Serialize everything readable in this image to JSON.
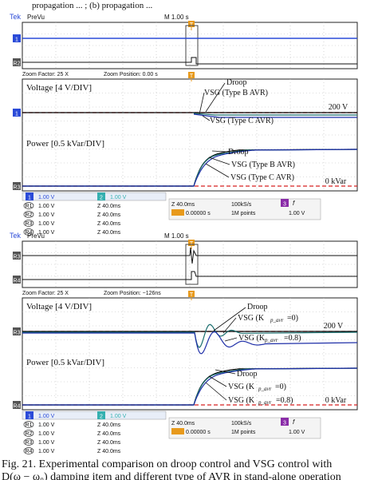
{
  "header_partial": "propagation ... ; (b) propagation ...",
  "panels": [
    {
      "brand": "Tek",
      "mode": "PreVu",
      "time_scale": "M 1.00 s",
      "trigger_marker": "T",
      "ch_markers": [
        "1",
        "R2"
      ],
      "zoom_factor": "Zoom Factor: 25 X",
      "zoom_position": "Zoom Position: 0.00 s",
      "ch_boxes": [
        {
          "id": "1",
          "value": "1.00 V"
        },
        {
          "id": "2",
          "value": "1.00 V"
        }
      ],
      "refs": [
        {
          "id": "R1",
          "value": "1.00 V",
          "zoom": "Z 40.0ms"
        },
        {
          "id": "R2",
          "value": "1.00 V",
          "zoom": "Z 40.0ms"
        },
        {
          "id": "R3",
          "value": "1.00 V",
          "zoom": "Z 40.0ms"
        },
        {
          "id": "R4",
          "value": "1.00 V",
          "zoom": "Z 40.0ms"
        }
      ],
      "time_readout": "Z 40.0ms",
      "sample_rate": "100kS/s",
      "trig_time": "0.00000 s",
      "points": "1M points",
      "ch3_label": "3",
      "trig_symbol": "f",
      "trig_level": "1.00 V",
      "left_markers_upper": "1",
      "left_markers_lower": "R3",
      "voltage_label": "Voltage [4 V/DIV]",
      "power_label": "Power [0.5 kVar/DIV]",
      "voltage_callouts": [
        "Droop",
        "VSG (Type B AVR)",
        "VSG (Type C AVR)"
      ],
      "power_callouts": [
        "Droop",
        "VSG (Type B AVR)",
        "VSG (Type C AVR)"
      ],
      "voltage_ref": "200 V",
      "power_ref": "0 kVar"
    },
    {
      "brand": "Tek",
      "mode": "PreVu",
      "time_scale": "M 1.00 s",
      "trigger_marker": "T",
      "ch_markers": [
        "R3",
        "R4"
      ],
      "zoom_factor": "Zoom Factor: 25 X",
      "zoom_position": "Zoom Position: −126ns",
      "ch_boxes": [
        {
          "id": "1",
          "value": "1.00 V"
        },
        {
          "id": "2",
          "value": "1.00 V"
        }
      ],
      "refs": [
        {
          "id": "R1",
          "value": "1.00 V",
          "zoom": "Z 40.0ms"
        },
        {
          "id": "R2",
          "value": "1.00 V",
          "zoom": "Z 40.0ms"
        },
        {
          "id": "R3",
          "value": "1.00 V",
          "zoom": "Z 40.0ms"
        },
        {
          "id": "R4",
          "value": "1.00 V",
          "zoom": "Z 40.0ms"
        }
      ],
      "time_readout": "Z 40.0ms",
      "sample_rate": "100kS/s",
      "trig_time": "0.00000 s",
      "points": "1M points",
      "ch3_label": "3",
      "trig_symbol": "f",
      "trig_level": "1.00 V",
      "left_markers_upper": "R3",
      "left_markers_lower": "R4",
      "voltage_label": "Voltage [4 V/DIV]",
      "power_label": "Power [0.5 kVar/DIV]",
      "voltage_callouts": [
        "Droop",
        "VSG (K",
        "p_avr",
        "=0)",
        "VSG (K",
        "p_avr",
        "=0.8)"
      ],
      "power_callouts": [
        "Droop",
        "VSG (K",
        "p_avr",
        "=0)",
        "VSG (K",
        "p_avr",
        "=0.8)"
      ],
      "voltage_ref": "200 V",
      "power_ref": "0 kVar"
    }
  ],
  "caption": {
    "line1": "Fig. 21.  Experimental comparison on droop control and VSG control with",
    "line2": "D(ω − ω₀) damping item and different type of AVR in stand-alone operation"
  },
  "chart_data": [
    {
      "type": "line",
      "title": "",
      "subplot": "Voltage [4 V/DIV]",
      "xlabel": "",
      "ylabel": "",
      "reference_label": "200 V",
      "series": [
        {
          "name": "Droop",
          "color": "#000000"
        },
        {
          "name": "VSG (Type B AVR)",
          "color": "#1a6e6e"
        },
        {
          "name": "VSG (Type C AVR)",
          "color": "#1f2fa8"
        }
      ]
    },
    {
      "type": "line",
      "title": "",
      "subplot": "Power [0.5 kVar/DIV]",
      "reference_label": "0 kVar",
      "series": [
        {
          "name": "Droop",
          "color": "#000000"
        },
        {
          "name": "VSG (Type B AVR)",
          "color": "#1a6e6e"
        },
        {
          "name": "VSG (Type C AVR)",
          "color": "#1f2fa8"
        }
      ]
    },
    {
      "type": "line",
      "title": "",
      "subplot": "Voltage [4 V/DIV]",
      "reference_label": "200 V",
      "series": [
        {
          "name": "Droop",
          "color": "#000000"
        },
        {
          "name": "VSG (Kp_avr=0)",
          "color": "#1a6e6e"
        },
        {
          "name": "VSG (Kp_avr=0.8)",
          "color": "#1f2fa8"
        }
      ]
    },
    {
      "type": "line",
      "title": "",
      "subplot": "Power [0.5 kVar/DIV]",
      "reference_label": "0 kVar",
      "series": [
        {
          "name": "Droop",
          "color": "#000000"
        },
        {
          "name": "VSG (Kp_avr=0)",
          "color": "#1a6e6e"
        },
        {
          "name": "VSG (Kp_avr=0.8)",
          "color": "#1f2fa8"
        }
      ]
    }
  ],
  "colors": {
    "grid": "#bbbbbb",
    "trigger": "#e89a1c",
    "ref_dash": "#d62020",
    "ch1": "#2b4bd8",
    "ch2": "#35b0b0",
    "ch3": "#8a2ca8",
    "trace_black": "#000000",
    "trace_teal": "#1a6e6e",
    "trace_blue": "#1f2fa8"
  }
}
